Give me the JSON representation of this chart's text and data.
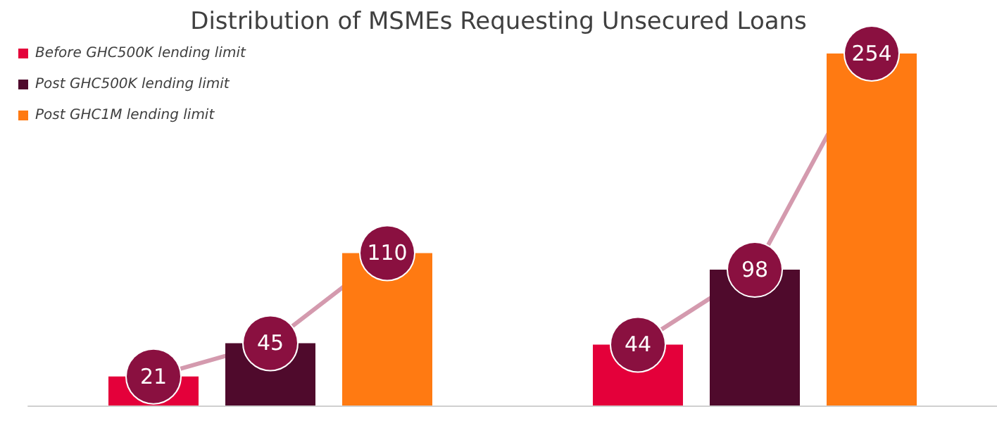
{
  "chart_data": {
    "type": "bar",
    "title": "Distribution of MSMEs Requesting Unsecured Loans",
    "categories": [
      null,
      null
    ],
    "series": [
      {
        "name": "Before GHC500K lending limit",
        "color": "#e4003a",
        "values": [
          21,
          44
        ]
      },
      {
        "name": "Post GHC500K lending limit",
        "color": "#4f0a2c",
        "values": [
          45,
          98
        ]
      },
      {
        "name": "Post GHC1M lending limit",
        "color": "#ff7a12",
        "values": [
          110,
          254
        ]
      }
    ],
    "data_labels": true,
    "grid": false,
    "legend": "top left"
  }
}
